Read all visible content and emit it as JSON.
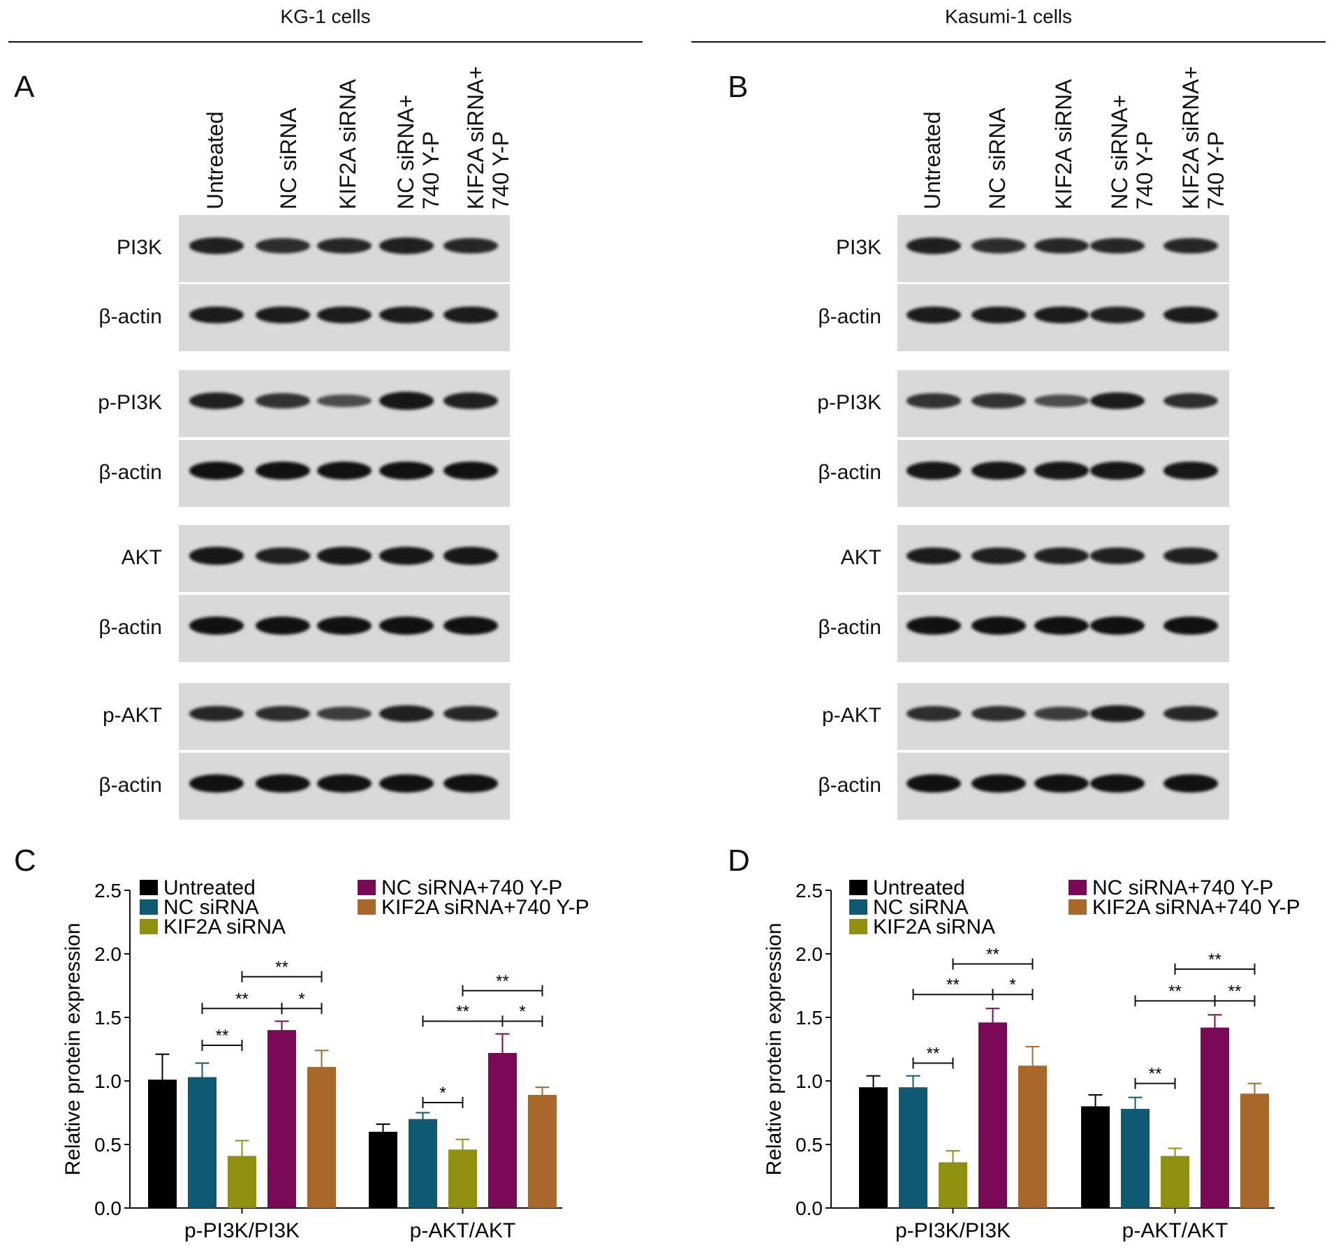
{
  "figure": {
    "panel_a": {
      "letter": "A",
      "cell_line": "KG-1 cells",
      "lanes": [
        "Untreated",
        "NC siRNA",
        "KIF2A siRNA",
        [
          "NC siRNA+",
          "740 Y-P"
        ],
        [
          "KIF2A siRNA+",
          "740 Y-P"
        ]
      ],
      "blots": [
        {
          "label": "PI3K",
          "intensity": [
            0.85,
            0.75,
            0.8,
            0.85,
            0.8
          ]
        },
        {
          "label": "β-actin",
          "intensity": [
            0.9,
            0.9,
            0.9,
            0.9,
            0.9
          ]
        },
        {
          "label": "p-PI3K",
          "intensity": [
            0.85,
            0.7,
            0.45,
            0.95,
            0.85
          ]
        },
        {
          "label": "β-actin",
          "intensity": [
            1,
            1,
            1,
            1,
            1
          ]
        },
        {
          "label": "AKT",
          "intensity": [
            0.95,
            0.85,
            0.95,
            0.95,
            0.95
          ]
        },
        {
          "label": "β-actin",
          "intensity": [
            1,
            1,
            1,
            1,
            1
          ]
        },
        {
          "label": "p-AKT",
          "intensity": [
            0.8,
            0.75,
            0.6,
            0.85,
            0.8
          ]
        },
        {
          "label": "β-actin",
          "intensity": [
            1,
            1,
            1,
            1,
            1
          ]
        }
      ]
    },
    "panel_b": {
      "letter": "B",
      "cell_line": "Kasumi-1 cells",
      "lanes": [
        "Untreated",
        "NC siRNA",
        "KIF2A siRNA",
        [
          "NC siRNA+",
          "740 Y-P"
        ],
        [
          "KIF2A siRNA+",
          "740 Y-P"
        ]
      ],
      "blots": [
        {
          "label": "PI3K",
          "intensity": [
            0.85,
            0.75,
            0.8,
            0.8,
            0.8
          ]
        },
        {
          "label": "β-actin",
          "intensity": [
            0.9,
            0.9,
            0.9,
            0.85,
            0.9
          ]
        },
        {
          "label": "p-PI3K",
          "intensity": [
            0.7,
            0.7,
            0.45,
            0.9,
            0.75
          ]
        },
        {
          "label": "β-actin",
          "intensity": [
            0.95,
            0.95,
            0.95,
            0.95,
            0.95
          ]
        },
        {
          "label": "AKT",
          "intensity": [
            0.9,
            0.85,
            0.85,
            0.85,
            0.85
          ]
        },
        {
          "label": "β-actin",
          "intensity": [
            1,
            1,
            1,
            1,
            1
          ]
        },
        {
          "label": "p-AKT",
          "intensity": [
            0.75,
            0.75,
            0.6,
            0.9,
            0.8
          ]
        },
        {
          "label": "β-actin",
          "intensity": [
            1,
            1,
            1,
            1,
            1
          ]
        }
      ]
    }
  },
  "chart_data": [
    {
      "panel": "C",
      "type": "bar",
      "ylabel": "Relative protein expression",
      "ylim": [
        0,
        2.5
      ],
      "yticks": [
        "0.0",
        "0.5",
        "1.0",
        "1.5",
        "2.0",
        "2.5"
      ],
      "categories": [
        "p-PI3K/PI3K",
        "p-AKT/AKT"
      ],
      "series": [
        {
          "name": "Untreated",
          "color": "#000000",
          "values": [
            1.01,
            0.6
          ],
          "errors": [
            0.2,
            0.06
          ]
        },
        {
          "name": "NC siRNA",
          "color": "#0e5a73",
          "values": [
            1.03,
            0.7
          ],
          "errors": [
            0.11,
            0.05
          ]
        },
        {
          "name": "KIF2A siRNA",
          "color": "#8f8f10",
          "values": [
            0.41,
            0.46
          ],
          "errors": [
            0.12,
            0.08
          ]
        },
        {
          "name": "NC siRNA+740 Y-P",
          "color": "#7a0a55",
          "values": [
            1.4,
            1.22
          ],
          "errors": [
            0.07,
            0.15
          ]
        },
        {
          "name": "KIF2A siRNA+740 Y-P",
          "color": "#a8682a",
          "values": [
            1.11,
            0.89
          ],
          "errors": [
            0.13,
            0.06
          ]
        }
      ],
      "significance": [
        {
          "category": 0,
          "from": 1,
          "to": 2,
          "y": 1.28,
          "label": "**"
        },
        {
          "category": 0,
          "from": 1,
          "to": 3,
          "y": 1.57,
          "label": "**"
        },
        {
          "category": 0,
          "from": 3,
          "to": 4,
          "y": 1.57,
          "label": "*"
        },
        {
          "category": 0,
          "from": 2,
          "to": 4,
          "y": 1.82,
          "label": "**"
        },
        {
          "category": 1,
          "from": 1,
          "to": 2,
          "y": 0.83,
          "label": "*"
        },
        {
          "category": 1,
          "from": 1,
          "to": 3,
          "y": 1.47,
          "label": "**"
        },
        {
          "category": 1,
          "from": 3,
          "to": 4,
          "y": 1.47,
          "label": "*"
        },
        {
          "category": 1,
          "from": 2,
          "to": 4,
          "y": 1.71,
          "label": "**"
        }
      ],
      "legend": "top"
    },
    {
      "panel": "D",
      "type": "bar",
      "ylabel": "Relative protein expression",
      "ylim": [
        0,
        2.5
      ],
      "yticks": [
        "0.0",
        "0.5",
        "1.0",
        "1.5",
        "2.0",
        "2.5"
      ],
      "categories": [
        "p-PI3K/PI3K",
        "p-AKT/AKT"
      ],
      "series": [
        {
          "name": "Untreated",
          "color": "#000000",
          "values": [
            0.95,
            0.8
          ],
          "errors": [
            0.09,
            0.09
          ]
        },
        {
          "name": "NC siRNA",
          "color": "#0e5a73",
          "values": [
            0.95,
            0.78
          ],
          "errors": [
            0.09,
            0.09
          ]
        },
        {
          "name": "KIF2A siRNA",
          "color": "#8f8f10",
          "values": [
            0.36,
            0.41
          ],
          "errors": [
            0.09,
            0.06
          ]
        },
        {
          "name": "NC siRNA+740 Y-P",
          "color": "#7a0a55",
          "values": [
            1.46,
            1.42
          ],
          "errors": [
            0.11,
            0.1
          ]
        },
        {
          "name": "KIF2A siRNA+740 Y-P",
          "color": "#a8682a",
          "values": [
            1.12,
            0.9
          ],
          "errors": [
            0.15,
            0.08
          ]
        }
      ],
      "significance": [
        {
          "category": 0,
          "from": 1,
          "to": 2,
          "y": 1.14,
          "label": "**"
        },
        {
          "category": 0,
          "from": 1,
          "to": 3,
          "y": 1.68,
          "label": "**"
        },
        {
          "category": 0,
          "from": 3,
          "to": 4,
          "y": 1.68,
          "label": "*"
        },
        {
          "category": 0,
          "from": 2,
          "to": 4,
          "y": 1.92,
          "label": "**"
        },
        {
          "category": 1,
          "from": 1,
          "to": 2,
          "y": 0.98,
          "label": "**"
        },
        {
          "category": 1,
          "from": 1,
          "to": 3,
          "y": 1.63,
          "label": "**"
        },
        {
          "category": 1,
          "from": 3,
          "to": 4,
          "y": 1.63,
          "label": "**"
        },
        {
          "category": 1,
          "from": 2,
          "to": 4,
          "y": 1.88,
          "label": "**"
        }
      ],
      "legend": "top"
    }
  ]
}
